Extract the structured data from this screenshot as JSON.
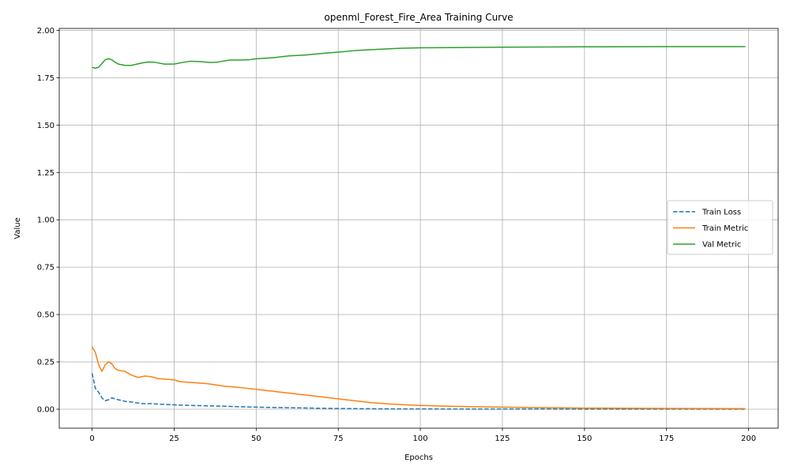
{
  "chart_data": {
    "type": "line",
    "title": "openml_Forest_Fire_Area Training Curve",
    "xlabel": "Epochs",
    "ylabel": "Value",
    "xlim": [
      -10,
      209
    ],
    "ylim": [
      -0.1,
      2.01
    ],
    "x_ticks": [
      0,
      25,
      50,
      75,
      100,
      125,
      150,
      175,
      200
    ],
    "y_ticks": [
      0.0,
      0.25,
      0.5,
      0.75,
      1.0,
      1.25,
      1.5,
      1.75,
      2.0
    ],
    "y_tick_labels": [
      "0.00",
      "0.25",
      "0.50",
      "0.75",
      "1.00",
      "1.25",
      "1.50",
      "1.75",
      "2.00"
    ],
    "grid": true,
    "legend_position": "center-right",
    "series": [
      {
        "name": "Train Loss",
        "color": "#1f77b4",
        "style": "dashed",
        "points": [
          [
            0,
            0.19
          ],
          [
            1,
            0.11
          ],
          [
            2,
            0.09
          ],
          [
            3,
            0.06
          ],
          [
            4,
            0.045
          ],
          [
            5,
            0.05
          ],
          [
            6,
            0.06
          ],
          [
            7,
            0.055
          ],
          [
            8,
            0.05
          ],
          [
            10,
            0.042
          ],
          [
            12,
            0.038
          ],
          [
            15,
            0.03
          ],
          [
            18,
            0.03
          ],
          [
            20,
            0.027
          ],
          [
            25,
            0.023
          ],
          [
            30,
            0.02
          ],
          [
            35,
            0.018
          ],
          [
            40,
            0.016
          ],
          [
            45,
            0.013
          ],
          [
            50,
            0.011
          ],
          [
            60,
            0.008
          ],
          [
            70,
            0.005
          ],
          [
            80,
            0.003
          ],
          [
            90,
            0.002
          ],
          [
            100,
            0.0015
          ],
          [
            125,
            0.001
          ],
          [
            150,
            0.0008
          ],
          [
            175,
            0.0005
          ],
          [
            199,
            0.0004
          ]
        ]
      },
      {
        "name": "Train Metric",
        "color": "#ff7f0e",
        "style": "solid",
        "points": [
          [
            0,
            0.33
          ],
          [
            1,
            0.3
          ],
          [
            2,
            0.235
          ],
          [
            3,
            0.2
          ],
          [
            4,
            0.235
          ],
          [
            5,
            0.25
          ],
          [
            6,
            0.24
          ],
          [
            7,
            0.215
          ],
          [
            8,
            0.205
          ],
          [
            10,
            0.2
          ],
          [
            12,
            0.18
          ],
          [
            14,
            0.168
          ],
          [
            16,
            0.175
          ],
          [
            18,
            0.172
          ],
          [
            20,
            0.162
          ],
          [
            25,
            0.155
          ],
          [
            27,
            0.145
          ],
          [
            30,
            0.142
          ],
          [
            35,
            0.135
          ],
          [
            38,
            0.128
          ],
          [
            40,
            0.122
          ],
          [
            45,
            0.115
          ],
          [
            50,
            0.105
          ],
          [
            55,
            0.095
          ],
          [
            60,
            0.085
          ],
          [
            65,
            0.075
          ],
          [
            70,
            0.065
          ],
          [
            75,
            0.055
          ],
          [
            80,
            0.045
          ],
          [
            85,
            0.035
          ],
          [
            90,
            0.028
          ],
          [
            100,
            0.02
          ],
          [
            110,
            0.015
          ],
          [
            125,
            0.011
          ],
          [
            150,
            0.006
          ],
          [
            175,
            0.004
          ],
          [
            199,
            0.003
          ]
        ]
      },
      {
        "name": "Val Metric",
        "color": "#2ca02c",
        "style": "solid",
        "points": [
          [
            0,
            1.805
          ],
          [
            1,
            1.8
          ],
          [
            2,
            1.805
          ],
          [
            3,
            1.825
          ],
          [
            4,
            1.845
          ],
          [
            5,
            1.85
          ],
          [
            6,
            1.845
          ],
          [
            7,
            1.832
          ],
          [
            8,
            1.822
          ],
          [
            10,
            1.815
          ],
          [
            12,
            1.815
          ],
          [
            15,
            1.827
          ],
          [
            17,
            1.833
          ],
          [
            19,
            1.832
          ],
          [
            22,
            1.822
          ],
          [
            25,
            1.822
          ],
          [
            28,
            1.832
          ],
          [
            30,
            1.837
          ],
          [
            33,
            1.835
          ],
          [
            36,
            1.83
          ],
          [
            38,
            1.832
          ],
          [
            42,
            1.843
          ],
          [
            45,
            1.843
          ],
          [
            48,
            1.845
          ],
          [
            50,
            1.85
          ],
          [
            55,
            1.855
          ],
          [
            60,
            1.865
          ],
          [
            65,
            1.87
          ],
          [
            70,
            1.878
          ],
          [
            75,
            1.885
          ],
          [
            80,
            1.893
          ],
          [
            85,
            1.898
          ],
          [
            90,
            1.902
          ],
          [
            95,
            1.906
          ],
          [
            100,
            1.908
          ],
          [
            110,
            1.909
          ],
          [
            125,
            1.911
          ],
          [
            150,
            1.913
          ],
          [
            175,
            1.914
          ],
          [
            199,
            1.914
          ]
        ]
      }
    ]
  }
}
